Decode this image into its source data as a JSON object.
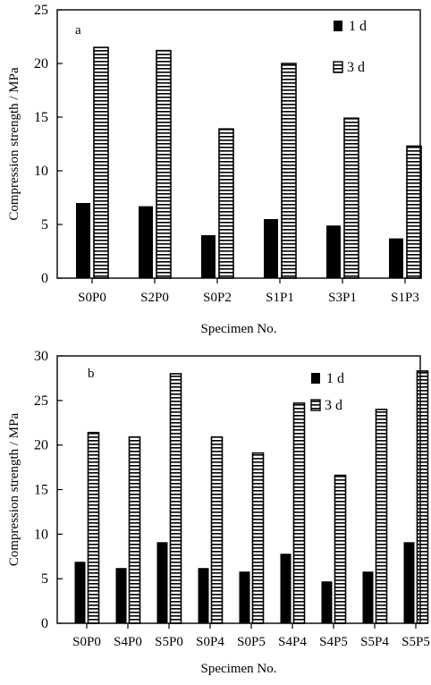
{
  "chart_data": [
    {
      "type": "bar",
      "panel_label": "a",
      "categories": [
        "S0P0",
        "S2P0",
        "S0P2",
        "S1P1",
        "S3P1",
        "S1P3"
      ],
      "series": [
        {
          "name": "1 d",
          "values": [
            7.0,
            6.7,
            4.0,
            5.5,
            4.9,
            3.7
          ]
        },
        {
          "name": "3 d",
          "values": [
            21.5,
            21.2,
            13.9,
            20.0,
            14.9,
            12.3
          ]
        }
      ],
      "xlabel": "Specimen No.",
      "ylabel": "Compression strength / MPa",
      "ylim": [
        0,
        25
      ],
      "yticks": [
        0,
        5,
        10,
        15,
        20,
        25
      ],
      "legend_position": "top-right",
      "grid": false
    },
    {
      "type": "bar",
      "panel_label": "b",
      "categories": [
        "S0P0",
        "S4P0",
        "S5P0",
        "S0P4",
        "S0P5",
        "S4P4",
        "S4P5",
        "S5P4",
        "S5P5"
      ],
      "series": [
        {
          "name": "1 d",
          "values": [
            6.9,
            6.2,
            9.1,
            6.2,
            5.8,
            7.8,
            4.7,
            5.8,
            9.1
          ]
        },
        {
          "name": "3 d",
          "values": [
            21.4,
            20.9,
            28.0,
            20.9,
            19.1,
            24.7,
            16.6,
            24.0,
            28.3
          ]
        }
      ],
      "xlabel": "Specimen No.",
      "ylabel": "Compression strength / MPa",
      "ylim": [
        0,
        30
      ],
      "yticks": [
        0,
        5,
        10,
        15,
        20,
        25,
        30
      ],
      "legend_position": "top-right",
      "grid": false
    }
  ]
}
